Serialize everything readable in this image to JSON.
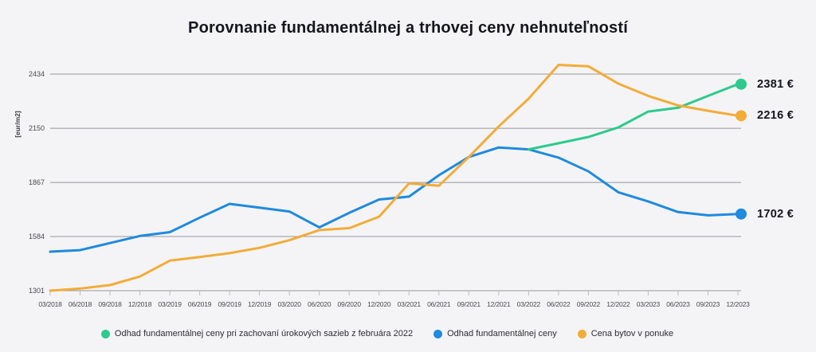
{
  "title": "Porovnanie fundamentálnej a trhovej ceny nehnuteľností",
  "y_axis": {
    "unit_label": "[eur/m2]",
    "ticks": [
      1301,
      1584,
      1867,
      2150,
      2434
    ]
  },
  "chart_data": {
    "type": "line",
    "x": [
      "03/2018",
      "06/2018",
      "09/2018",
      "12/2018",
      "03/2019",
      "06/2019",
      "09/2019",
      "12/2019",
      "03/2020",
      "06/2020",
      "09/2020",
      "12/2020",
      "03/2021",
      "06/2021",
      "09/2021",
      "12/2021",
      "03/2022",
      "06/2022",
      "09/2022",
      "12/2022",
      "03/2023",
      "06/2023",
      "09/2023",
      "12/2023"
    ],
    "ylim": [
      1301,
      2434
    ],
    "grid": true,
    "legend_position": "bottom",
    "series": [
      {
        "name": "Odhad fundamentálnej ceny",
        "color": "#1f8ade",
        "end_label": "1702 €",
        "values": [
          1505,
          1513,
          1550,
          1587,
          1607,
          1683,
          1755,
          1735,
          1715,
          1632,
          1708,
          1778,
          1793,
          1905,
          2000,
          2050,
          2040,
          1997,
          1925,
          1816,
          1768,
          1712,
          1695,
          1702
        ]
      },
      {
        "name": "Odhad fundamentálnej ceny pri zachovaní úrokových sazieb z februára 2022",
        "color": "#2dca8d",
        "end_label": "2381 €",
        "values": [
          null,
          null,
          null,
          null,
          null,
          null,
          null,
          null,
          null,
          null,
          null,
          null,
          null,
          null,
          null,
          null,
          2040,
          2072,
          2105,
          2155,
          2238,
          2258,
          2320,
          2381
        ]
      },
      {
        "name": "Cena bytov v ponuke",
        "color": "#f2ac38",
        "end_label": "2216 €",
        "values": [
          1301,
          1312,
          1330,
          1375,
          1458,
          1477,
          1497,
          1525,
          1565,
          1618,
          1628,
          1688,
          1862,
          1850,
          2000,
          2160,
          2305,
          2482,
          2475,
          2384,
          2320,
          2270,
          2242,
          2216
        ]
      }
    ],
    "legend_order": [
      1,
      0,
      2
    ]
  },
  "colors": {
    "background": "#f4f4f6",
    "gridline": "#97979c",
    "tick_mark": "#bdbdc2",
    "title_text": "#15151e"
  }
}
